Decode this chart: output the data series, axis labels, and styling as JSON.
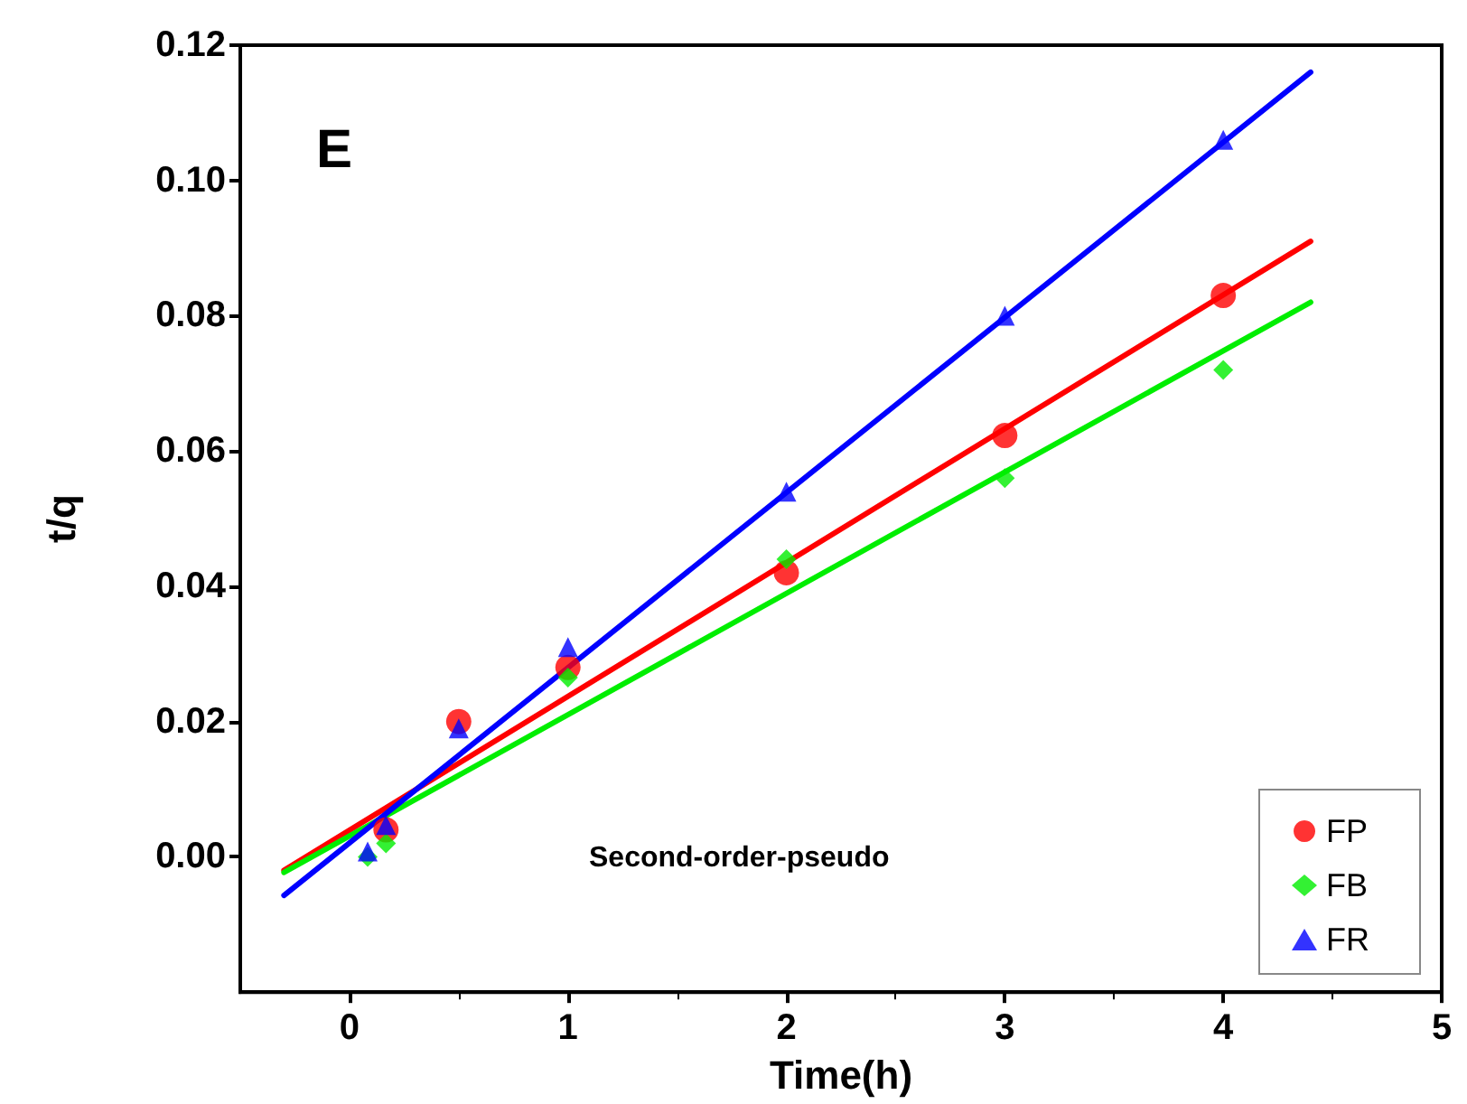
{
  "chart_data": {
    "type": "scatter",
    "xlabel": "Time(h)",
    "ylabel": "t/q",
    "annotations": [
      "E",
      "Second-order-pseudo"
    ],
    "xlim": [
      -0.5,
      5
    ],
    "xticks": [
      0,
      1,
      2,
      3,
      4,
      5
    ],
    "ylim": [
      -0.02,
      0.12
    ],
    "yticks": [
      {
        "value": 0,
        "label": "0.00"
      },
      0.02,
      0.04,
      0.06,
      0.08,
      {
        "value": 0.1,
        "label": "0.10"
      },
      0.12
    ],
    "grid": false,
    "legend": "bottom right",
    "series": [
      {
        "name": "FP",
        "marker": "circle",
        "color": "#ff0000",
        "x": [
          0.167,
          0.5,
          1,
          2,
          3,
          4
        ],
        "values": [
          0.004,
          0.02,
          0.028,
          0.042,
          0.0623,
          0.083
        ]
      },
      {
        "name": "FB",
        "marker": "diamond",
        "color": "#00ee00",
        "x": [
          0.083,
          0.167,
          1,
          2,
          3,
          4
        ],
        "values": [
          0.0,
          0.002,
          0.0265,
          0.044,
          0.056,
          0.072
        ]
      },
      {
        "name": "FR",
        "marker": "triangle",
        "color": "#0000ff",
        "x": [
          0.083,
          0.167,
          0.5,
          1,
          2,
          3,
          4
        ],
        "values": [
          0.0008,
          0.0047,
          0.019,
          0.031,
          0.054,
          0.08,
          0.106
        ]
      },
      {
        "type": "line",
        "marker": "none",
        "color": "#ff0000",
        "x": [
          -0.3,
          4.4
        ],
        "values": [
          -0.002,
          0.091
        ]
      },
      {
        "type": "line",
        "marker": "none",
        "color": "#00ee00",
        "x": [
          -0.3,
          4.4
        ],
        "values": [
          -0.0023,
          0.082
        ]
      },
      {
        "type": "line",
        "marker": "none",
        "color": "#0000ff",
        "x": [
          -0.3,
          4.4
        ],
        "values": [
          -0.0057,
          0.116
        ]
      }
    ]
  }
}
